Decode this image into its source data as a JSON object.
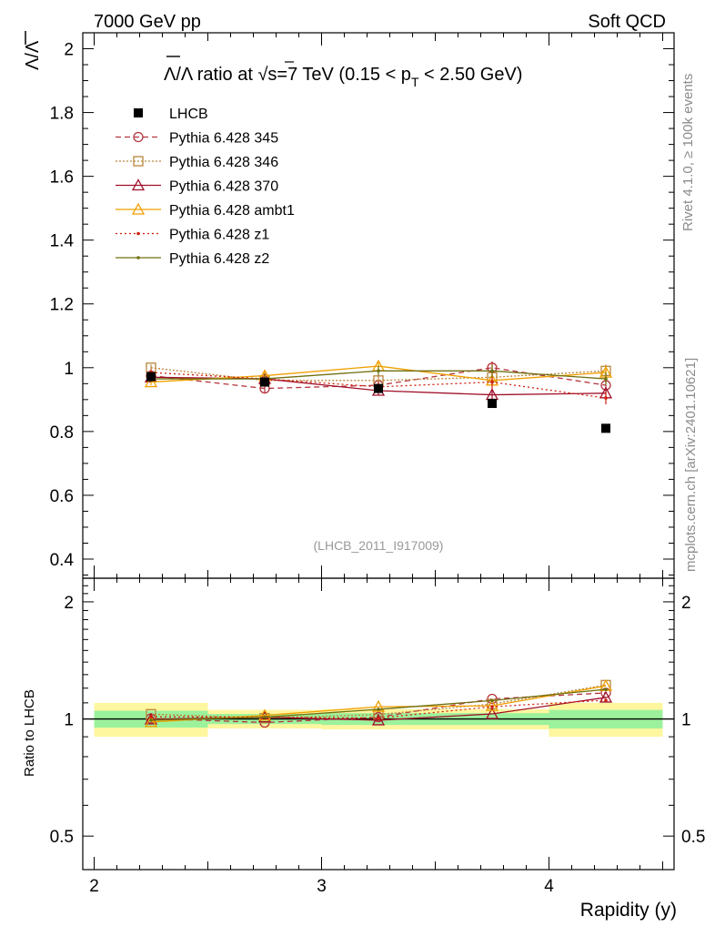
{
  "header": {
    "left": "7000 GeV pp",
    "right": "Soft QCD"
  },
  "side": {
    "rivet": "Rivet 4.1.0, ≥ 100k events",
    "mcplots": "mcplots.cern.ch [arXiv:2401.10621]"
  },
  "chart_data": {
    "type": "scatter",
    "title": "Λ̄/Λ ratio at √s=7 TeV (0.15 < pT < 2.50 GeV)",
    "title_parts": {
      "lambdas": "Λ/Λ",
      "text1": " ratio at ",
      "sqrt": "√s=7 TeV (0.15 < p",
      "sub": "T",
      "text2": " < 2.50 GeV)"
    },
    "ylabel": "Λ/Λ",
    "xlabel": "Rapidity (y)",
    "ratio_ylabel": "Ratio to LHCB",
    "analysis_id": "(LHCB_2011_I917009)",
    "xlim": [
      1.95,
      4.55
    ],
    "ylim": [
      0.34,
      2.05
    ],
    "ratio_ylim": [
      0.41,
      2.3
    ],
    "x_ticks": [
      "2",
      "3",
      "4"
    ],
    "x_tick_values": [
      2,
      3,
      4
    ],
    "y_ticks": [
      "0.4",
      "0.6",
      "0.8",
      "1",
      "1.2",
      "1.4",
      "1.6",
      "1.8",
      "2"
    ],
    "y_tick_values": [
      0.4,
      0.6,
      0.8,
      1.0,
      1.2,
      1.4,
      1.6,
      1.8,
      2.0
    ],
    "ratio_y_ticks": [
      "0.5",
      "1",
      "2"
    ],
    "ratio_y_tick_values": [
      0.5,
      1,
      2
    ],
    "x": [
      2.25,
      2.75,
      3.25,
      3.75,
      4.25
    ],
    "bin_edges": [
      2.0,
      2.5,
      3.0,
      3.5,
      4.0,
      4.5
    ],
    "data": {
      "name": "LHCB",
      "values": [
        0.972,
        0.955,
        0.935,
        0.888,
        0.81
      ],
      "band_inner": [
        0.05,
        0.03,
        0.035,
        0.035,
        0.055
      ],
      "band_outer": [
        0.1,
        0.055,
        0.06,
        0.06,
        0.1
      ]
    },
    "series": [
      {
        "name": "Pythia 6.428 345",
        "color": "#b5343f",
        "dash": "6,4",
        "marker": "circle-open",
        "values": [
          0.975,
          0.935,
          0.945,
          1.0,
          0.945
        ],
        "errors": [
          0.01,
          0.015,
          0.015,
          0.02,
          0.02
        ]
      },
      {
        "name": "Pythia 6.428 346",
        "color": "#b8863b",
        "dash": "2,2",
        "marker": "square-open",
        "values": [
          1.0,
          0.96,
          0.96,
          0.97,
          0.99
        ],
        "errors": [
          0.01,
          0.015,
          0.015,
          0.02,
          0.02
        ]
      },
      {
        "name": "Pythia 6.428 370",
        "color": "#a0102a",
        "dash": "",
        "marker": "triangle-open",
        "values": [
          0.97,
          0.965,
          0.928,
          0.915,
          0.92
        ],
        "errors": [
          0.01,
          0.015,
          0.015,
          0.02,
          0.02
        ]
      },
      {
        "name": "Pythia 6.428 ambt1",
        "color": "#f0a000",
        "dash": "",
        "marker": "triangle-open",
        "values": [
          0.955,
          0.975,
          1.005,
          0.96,
          0.985
        ],
        "errors": [
          0.01,
          0.015,
          0.015,
          0.02,
          0.02
        ]
      },
      {
        "name": "Pythia 6.428 z1",
        "color": "#d02010",
        "dash": "2,3",
        "marker": "dot",
        "values": [
          0.985,
          0.965,
          0.94,
          0.955,
          0.905
        ],
        "errors": [
          0.01,
          0.015,
          0.015,
          0.02,
          0.02
        ]
      },
      {
        "name": "Pythia 6.428 z2",
        "color": "#707010",
        "dash": "",
        "marker": "dot",
        "values": [
          0.965,
          0.965,
          0.99,
          0.99,
          0.965
        ],
        "errors": [
          0.01,
          0.015,
          0.015,
          0.02,
          0.02
        ]
      }
    ]
  }
}
